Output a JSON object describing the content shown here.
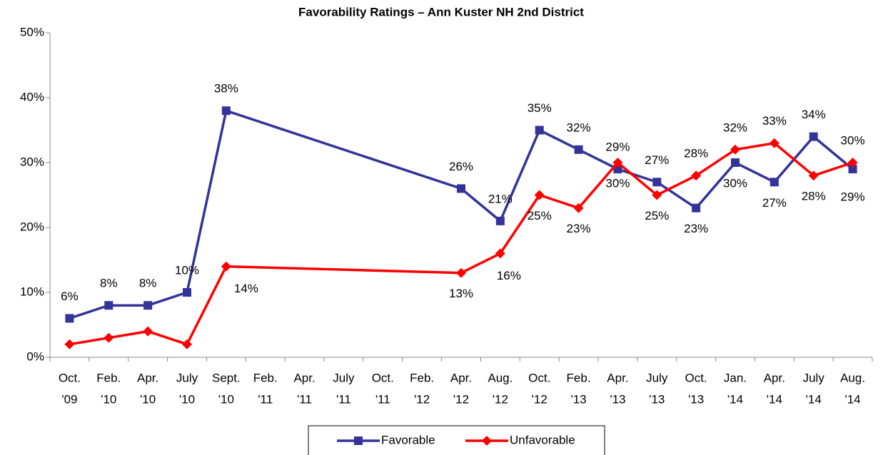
{
  "chart_data": {
    "type": "line",
    "title": "Favorability Ratings – Ann Kuster NH 2nd District",
    "categories": [
      [
        "Oct.",
        "'09"
      ],
      [
        "Feb.",
        "'10"
      ],
      [
        "Apr.",
        "'10"
      ],
      [
        "July",
        "'10"
      ],
      [
        "Sept.",
        "'10"
      ],
      [
        "Feb.",
        "'11"
      ],
      [
        "Apr.",
        "'11"
      ],
      [
        "July",
        "'11"
      ],
      [
        "Oct.",
        "'11"
      ],
      [
        "Feb.",
        "'12"
      ],
      [
        "Apr.",
        "'12"
      ],
      [
        "Aug.",
        "'12"
      ],
      [
        "Oct.",
        "'12"
      ],
      [
        "Feb.",
        "'13"
      ],
      [
        "Apr.",
        "'13"
      ],
      [
        "July",
        "'13"
      ],
      [
        "Oct.",
        "'13"
      ],
      [
        "Jan.",
        "'14"
      ],
      [
        "Apr.",
        "'14"
      ],
      [
        "July",
        "'14"
      ],
      [
        "Aug.",
        "'14"
      ]
    ],
    "series": [
      {
        "name": "Favorable",
        "color": "#333399",
        "marker": "square",
        "values": [
          6,
          8,
          8,
          10,
          38,
          null,
          null,
          null,
          null,
          null,
          26,
          21,
          35,
          32,
          29,
          27,
          23,
          30,
          27,
          34,
          29
        ],
        "value_labels": [
          "6%",
          "8%",
          "8%",
          "10%",
          "38%",
          null,
          null,
          null,
          null,
          null,
          "26%",
          "21%",
          "35%",
          "32%",
          "29%",
          "27%",
          "23%",
          "30%",
          "27%",
          "34%",
          "29%"
        ]
      },
      {
        "name": "Unfavorable",
        "color": "#ff0000",
        "marker": "diamond",
        "values": [
          2,
          3,
          4,
          2,
          14,
          null,
          null,
          null,
          null,
          null,
          13,
          16,
          25,
          23,
          30,
          25,
          28,
          32,
          33,
          28,
          30
        ],
        "value_labels": [
          null,
          null,
          null,
          null,
          "14%",
          null,
          null,
          null,
          null,
          null,
          "13%",
          "16%",
          "25%",
          "23%",
          "30%",
          "25%",
          "28%",
          "32%",
          "33%",
          "28%",
          "30%"
        ]
      }
    ],
    "ylim": [
      0,
      50
    ],
    "yticks": [
      {
        "value": 0,
        "label": "0%"
      },
      {
        "value": 10,
        "label": "10%"
      },
      {
        "value": 20,
        "label": "20%"
      },
      {
        "value": 30,
        "label": "30%"
      },
      {
        "value": 40,
        "label": "40%"
      },
      {
        "value": 50,
        "label": "50%"
      }
    ],
    "span_gaps": true,
    "legend": "bottom"
  }
}
